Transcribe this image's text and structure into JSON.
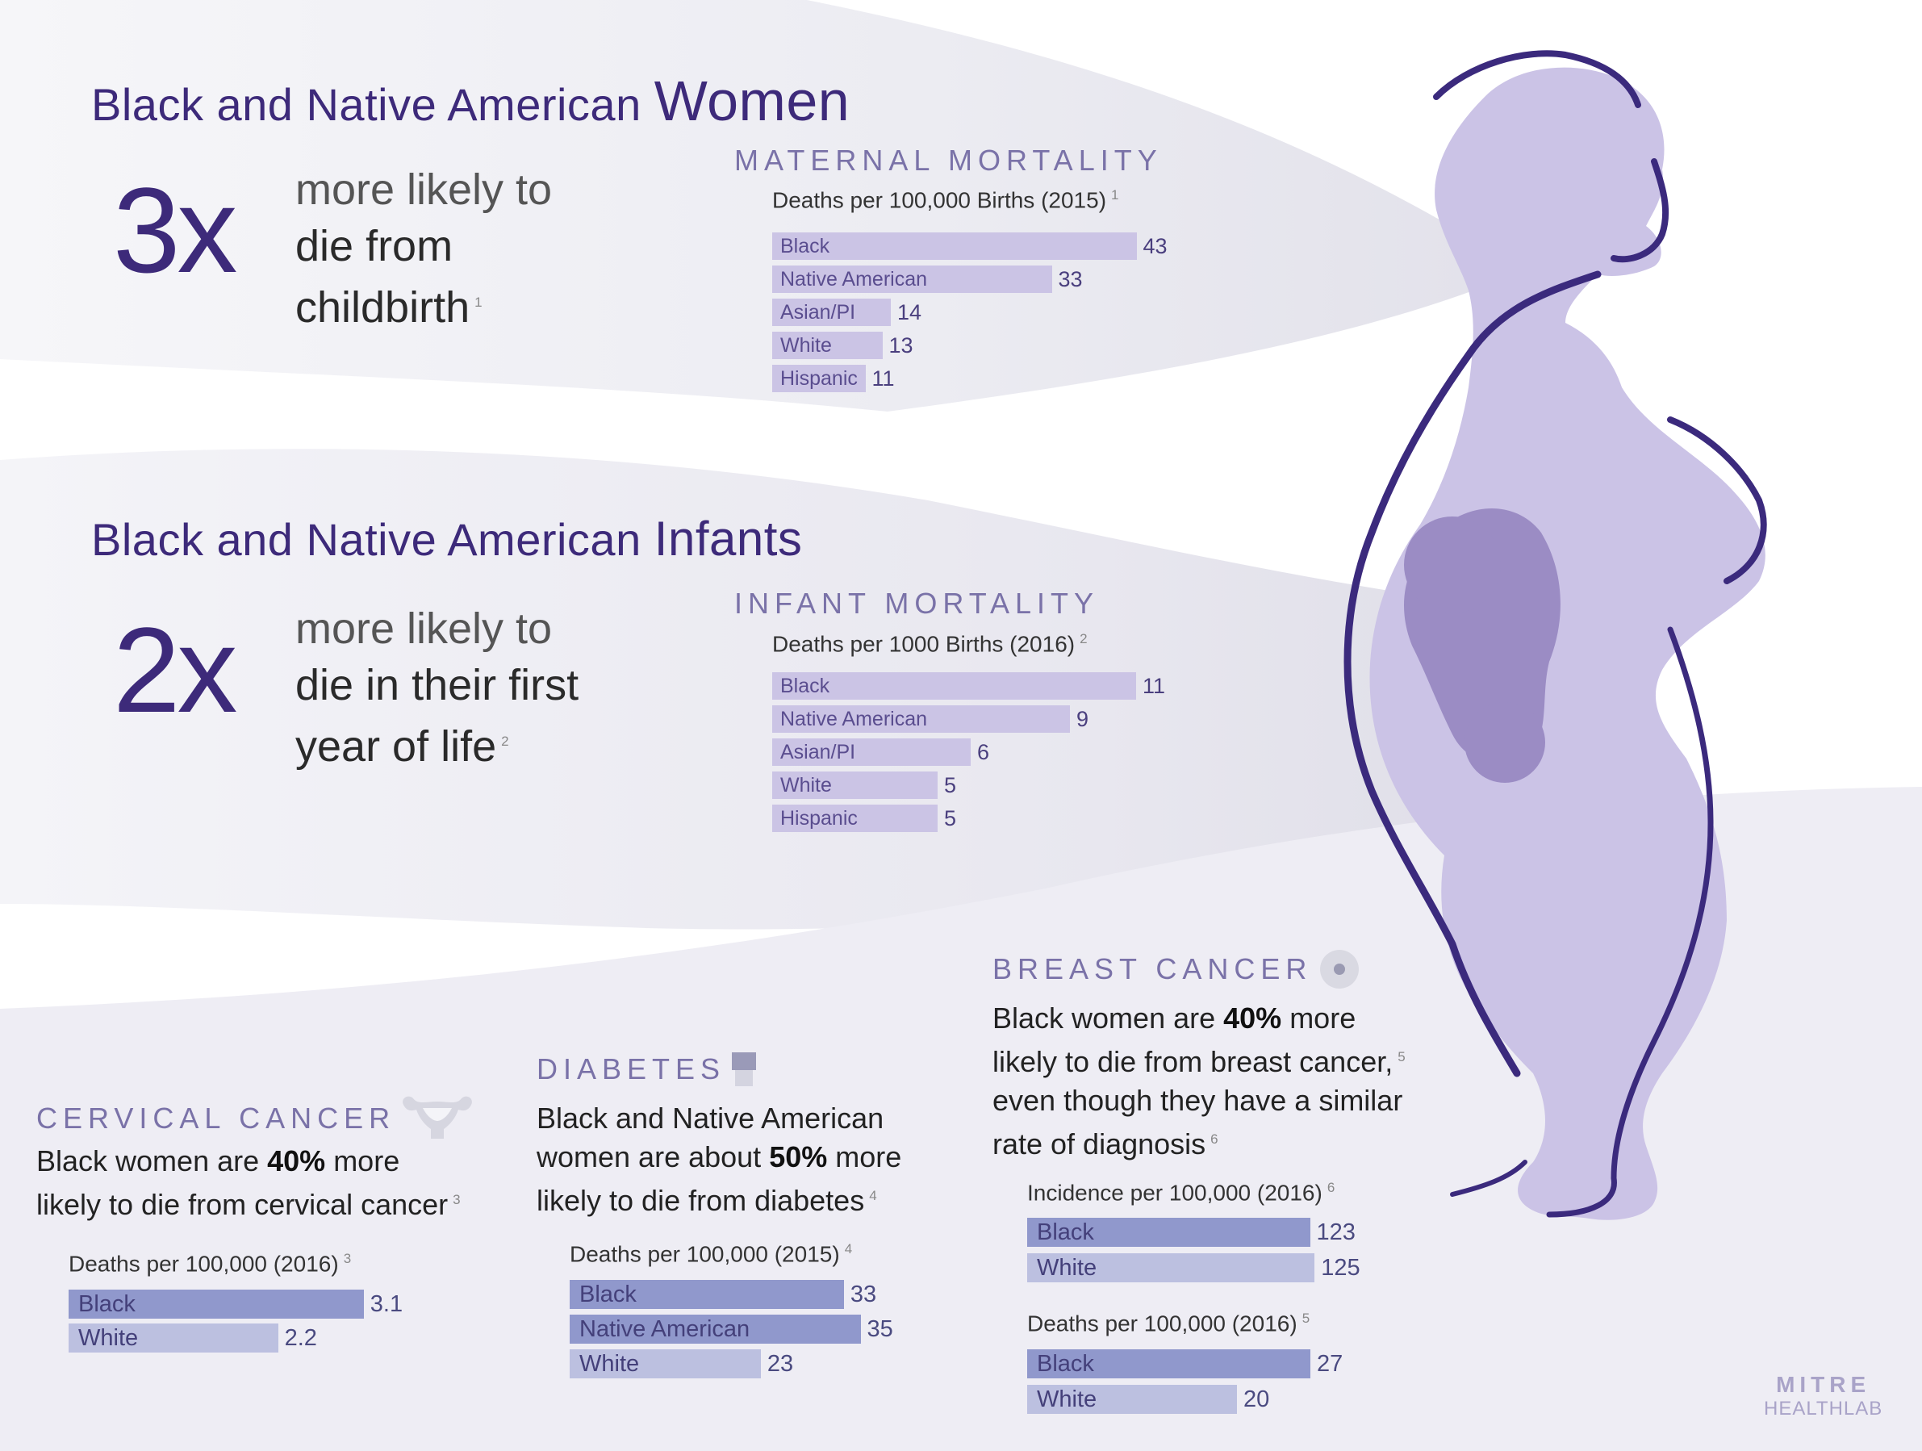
{
  "women": {
    "heading_a": "Black and Native American",
    "heading_b": "Women",
    "multiplier": "3x",
    "line1": "more likely to",
    "line2": "die from",
    "line3": "childbirth",
    "ref": "1"
  },
  "infants": {
    "heading_a": "Black and Native American",
    "heading_b": "Infants",
    "multiplier": "2x",
    "line1": "more likely to",
    "line2": "die in their first",
    "line3": "year of life",
    "ref": "2"
  },
  "maternal": {
    "title": "MATERNAL MORTALITY",
    "subtitle": "Deaths per 100,000 Births (2015)",
    "ref": "1"
  },
  "infant": {
    "title": "INFANT MORTALITY",
    "subtitle": "Deaths per 1000 Births (2016)",
    "ref": "2"
  },
  "cervical": {
    "title": "CERVICAL CANCER",
    "desc_a": "Black women are ",
    "desc_bold": "40%",
    "desc_b": " more",
    "desc_c": "likely to die from cervical cancer",
    "desc_ref": "3",
    "subtitle": "Deaths per 100,000 (2016)",
    "sub_ref": "3"
  },
  "diabetes": {
    "title": "DIABETES",
    "desc_a": "Black and Native American",
    "desc_b": "women are about ",
    "desc_bold": "50%",
    "desc_c": " more",
    "desc_d": "likely to die from diabetes",
    "desc_ref": "4",
    "subtitle": "Deaths per 100,000 (2015)",
    "sub_ref": "4"
  },
  "breast": {
    "title": "BREAST CANCER",
    "desc_a": "Black women are ",
    "desc_bold": "40%",
    "desc_b": " more",
    "desc_c": "likely to die from breast cancer,",
    "desc_ref1": "5",
    "desc_d": "even though they have a similar",
    "desc_e": "rate of diagnosis",
    "desc_ref2": "6",
    "incidence_subtitle": "Incidence per 100,000 (2016)",
    "incidence_ref": "6",
    "deaths_subtitle": "Deaths per 100,000 (2016)",
    "deaths_ref": "5"
  },
  "logo": {
    "line1": "MITRE",
    "line2": "HEALTHLAB"
  },
  "colors": {
    "heading": "#3d2a7a",
    "top_bar": "#cbc4e5",
    "bottom_bar_dark": "#9098cc",
    "bottom_bar_light": "#bcc0e0",
    "silhouette": "#cbc3e6",
    "outline": "#3b2a7d",
    "fetus": "#9b8cc4"
  },
  "chart_data": [
    {
      "type": "bar",
      "title": "MATERNAL MORTALITY",
      "subtitle": "Deaths per 100,000 Births (2015)",
      "categories": [
        "Black",
        "Native American",
        "Asian/PI",
        "White",
        "Hispanic"
      ],
      "values": [
        43,
        33,
        14,
        13,
        11
      ],
      "orientation": "horizontal"
    },
    {
      "type": "bar",
      "title": "INFANT MORTALITY",
      "subtitle": "Deaths per 1000 Births (2016)",
      "categories": [
        "Black",
        "Native American",
        "Asian/PI",
        "White",
        "Hispanic"
      ],
      "values": [
        11,
        9,
        6,
        5,
        5
      ],
      "orientation": "horizontal"
    },
    {
      "type": "bar",
      "title": "CERVICAL CANCER",
      "subtitle": "Deaths per 100,000 (2016)",
      "categories": [
        "Black",
        "White"
      ],
      "values": [
        3.1,
        2.2
      ],
      "orientation": "horizontal"
    },
    {
      "type": "bar",
      "title": "DIABETES",
      "subtitle": "Deaths per 100,000 (2015)",
      "categories": [
        "Black",
        "Native American",
        "White"
      ],
      "values": [
        33,
        35,
        23
      ],
      "orientation": "horizontal"
    },
    {
      "type": "bar",
      "title": "BREAST CANCER",
      "subtitle": "Incidence per 100,000 (2016)",
      "categories": [
        "Black",
        "White"
      ],
      "values": [
        123,
        125
      ],
      "orientation": "horizontal"
    },
    {
      "type": "bar",
      "title": "BREAST CANCER",
      "subtitle": "Deaths per 100,000 (2016)",
      "categories": [
        "Black",
        "White"
      ],
      "values": [
        27,
        20
      ],
      "orientation": "horizontal"
    }
  ]
}
